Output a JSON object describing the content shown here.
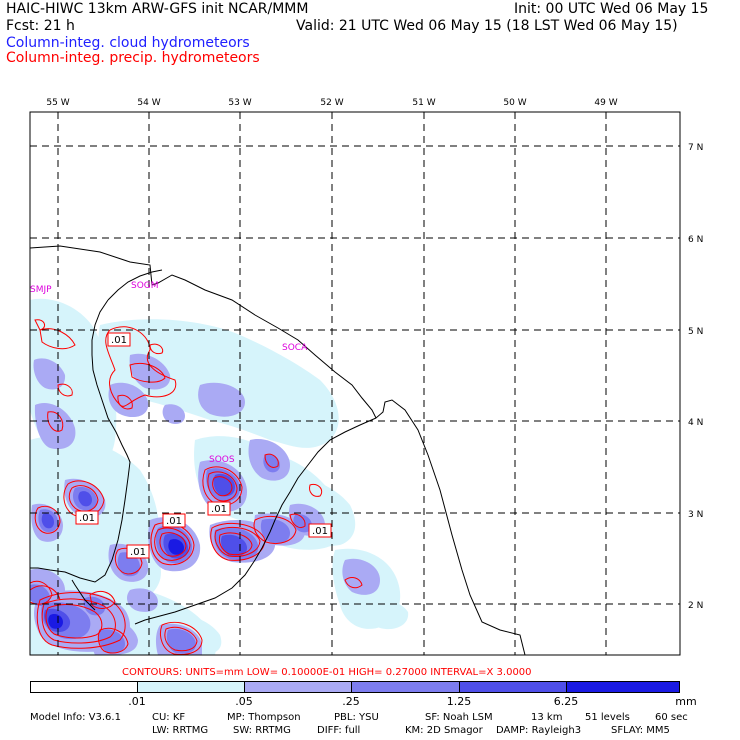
{
  "header": {
    "line1_left": "HAIC-HIWC 13km ARW-GFS init   NCAR/MMM",
    "line1_right": "Init: 00 UTC Wed 06 May 15",
    "line2_left": "Fcst:   21 h",
    "line2_right": "Valid: 21 UTC Wed 06 May 15 (18 LST Wed 06 May 15)",
    "field1": "Column-integ. cloud hydrometeors",
    "field2": "Column-integ. precip. hydrometeors"
  },
  "map": {
    "lon_labels": [
      "55 W",
      "54 W",
      "53 W",
      "52 W",
      "51 W",
      "50 W",
      "49 W"
    ],
    "lat_labels": [
      "7 N",
      "6 N",
      "5 N",
      "4 N",
      "3 N",
      "2 N"
    ],
    "stations": [
      "SMJP",
      "SOGM",
      "SOCA",
      "SOOS"
    ],
    "contour_labels": [
      ".01",
      ".01",
      ".01",
      ".01",
      ".01",
      ".01"
    ]
  },
  "contours_line": "CONTOURS:  UNITS=mm  LOW= 0.10000E-01  HIGH= 0.27000     INTERVAL=X  3.0000",
  "colorbar": {
    "labels": [
      ".01",
      ".05",
      ".25",
      "1.25",
      "6.25",
      "mm"
    ],
    "colors": [
      "#ffffff",
      "#d6f4fb",
      "#aaaaf4",
      "#7d7def",
      "#4f4fe9",
      "#1a1ae3"
    ]
  },
  "footer": {
    "line1": [
      "Model Info: V3.6.1",
      "CU: KF",
      "MP: Thompson",
      "PBL: YSU",
      "SF: Noah LSM",
      "13 km",
      "51 levels",
      "60 sec"
    ],
    "line2": [
      "LW: RRTMG",
      "SW: RRTMG",
      "DIFF: full",
      "KM: 2D Smagor",
      "DAMP: Rayleigh3",
      "SFLAY: MM5"
    ]
  }
}
